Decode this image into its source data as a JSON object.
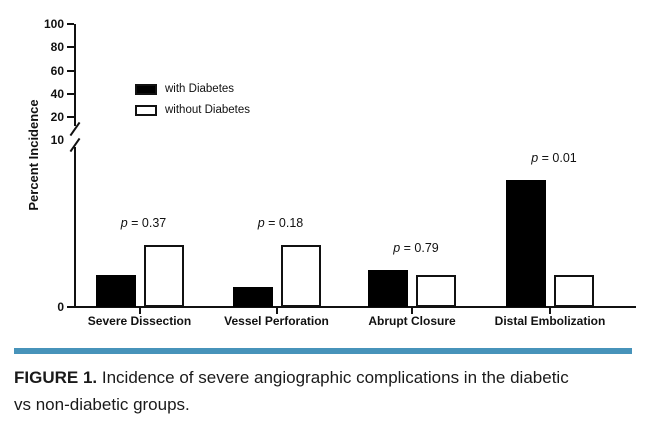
{
  "figure": {
    "caption_label": "FIGURE 1.",
    "caption_line1": "Incidence of severe angiographic complications in the diabetic",
    "caption_line2": "vs non-diabetic groups.",
    "rule_color": "#4793ba"
  },
  "chart_data": {
    "type": "bar",
    "title": "",
    "xlabel": "",
    "ylabel": "Percent Incidence",
    "y_ticks": [
      "100",
      "80",
      "60",
      "40",
      "20",
      "10",
      "0"
    ],
    "y_axis_break_between": [
      10,
      20
    ],
    "ylim_lower_segment": [
      0,
      10
    ],
    "ylim_upper_segment": [
      20,
      100
    ],
    "grid": false,
    "legend_position": "upper-left-inside",
    "categories": [
      "Severe Dissection",
      "Vessel Perforation",
      "Abrupt Closure",
      "Distal Embolization"
    ],
    "series": [
      {
        "name": "with Diabetes",
        "fill": "#000000",
        "values": [
          1.9,
          1.2,
          2.2,
          7.6
        ]
      },
      {
        "name": "without Diabetes",
        "fill": "#ffffff",
        "values": [
          3.7,
          3.7,
          1.9,
          1.9
        ]
      }
    ],
    "p_values": [
      "p = 0.37",
      "p = 0.18",
      "p = 0.79",
      "p = 0.01"
    ]
  }
}
